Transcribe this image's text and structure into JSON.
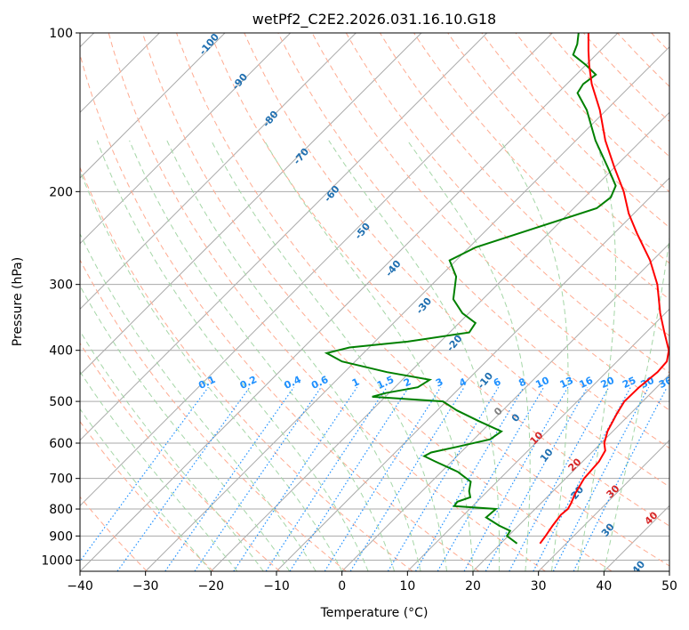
{
  "chart_data": {
    "type": "line",
    "title": "wetPf2_C2E2.2026.031.16.10.G18",
    "xlabel": "Temperature (°C)",
    "ylabel": "Pressure (hPa)",
    "xlim": [
      -40,
      50
    ],
    "ylim": [
      1050,
      100
    ],
    "y_scale": "log",
    "grid": true,
    "x_ticks": [
      "−40",
      "−30",
      "−20",
      "−10",
      "0",
      "10",
      "20",
      "30",
      "40",
      "50"
    ],
    "y_ticks": [
      {
        "p": 100,
        "label": "100"
      },
      {
        "p": 200,
        "label": "200"
      },
      {
        "p": 300,
        "label": "300"
      },
      {
        "p": 400,
        "label": "400"
      },
      {
        "p": 500,
        "label": "500"
      },
      {
        "p": 600,
        "label": "600"
      },
      {
        "p": 700,
        "label": "700"
      },
      {
        "p": 800,
        "label": "800"
      },
      {
        "p": 900,
        "label": "900"
      },
      {
        "p": 1000,
        "label": "1000"
      }
    ],
    "colors": {
      "temperature": "#ff0000",
      "dewpoint": "#008000",
      "dry_adiabat": "#ffab91",
      "moist_adiabat": "#a5d6a7",
      "mixing_ratio": "#1e90ff",
      "isotherm": "#aaaaaa",
      "isobar": "#aaaaaa"
    },
    "series": [
      {
        "points": [
          {
            "p": 930,
            "t": 26.0
          },
          {
            "p": 900,
            "t": 25.7
          },
          {
            "p": 860,
            "t": 25.2
          },
          {
            "p": 820,
            "t": 24.8
          },
          {
            "p": 800,
            "t": 25.0
          },
          {
            "p": 780,
            "t": 24.6
          },
          {
            "p": 750,
            "t": 23.8
          },
          {
            "p": 700,
            "t": 22.8
          },
          {
            "p": 650,
            "t": 22.5
          },
          {
            "p": 620,
            "t": 21.8
          },
          {
            "p": 600,
            "t": 20.5
          },
          {
            "p": 570,
            "t": 19.2
          },
          {
            "p": 530,
            "t": 18.0
          },
          {
            "p": 500,
            "t": 17.2
          },
          {
            "p": 470,
            "t": 17.3
          },
          {
            "p": 440,
            "t": 17.8
          },
          {
            "p": 420,
            "t": 17.6
          },
          {
            "p": 400,
            "t": 16.2
          },
          {
            "p": 370,
            "t": 12.8
          },
          {
            "p": 340,
            "t": 9.2
          },
          {
            "p": 300,
            "t": 4.4
          },
          {
            "p": 270,
            "t": -0.4
          },
          {
            "p": 240,
            "t": -6.5
          },
          {
            "p": 220,
            "t": -10.8
          },
          {
            "p": 200,
            "t": -14.9
          },
          {
            "p": 180,
            "t": -20.0
          },
          {
            "p": 160,
            "t": -25.5
          },
          {
            "p": 140,
            "t": -31.0
          },
          {
            "p": 125,
            "t": -36.2
          },
          {
            "p": 115,
            "t": -39.5
          },
          {
            "p": 108,
            "t": -41.8
          },
          {
            "p": 100,
            "t": -44.5
          }
        ]
      },
      {
        "points": [
          {
            "p": 930,
            "t": 22.5
          },
          {
            "p": 900,
            "t": 19.8
          },
          {
            "p": 880,
            "t": 19.5
          },
          {
            "p": 860,
            "t": 17.0
          },
          {
            "p": 830,
            "t": 13.8
          },
          {
            "p": 800,
            "t": 14.0
          },
          {
            "p": 790,
            "t": 7.2
          },
          {
            "p": 775,
            "t": 7.0
          },
          {
            "p": 760,
            "t": 8.3
          },
          {
            "p": 740,
            "t": 7.2
          },
          {
            "p": 710,
            "t": 6.0
          },
          {
            "p": 680,
            "t": 2.5
          },
          {
            "p": 650,
            "t": -2.5
          },
          {
            "p": 635,
            "t": -5.0
          },
          {
            "p": 625,
            "t": -4.5
          },
          {
            "p": 610,
            "t": -1.5
          },
          {
            "p": 590,
            "t": 2.5
          },
          {
            "p": 570,
            "t": 3.0
          },
          {
            "p": 545,
            "t": -2.0
          },
          {
            "p": 520,
            "t": -7.0
          },
          {
            "p": 500,
            "t": -10.5
          },
          {
            "p": 490,
            "t": -22.0
          },
          {
            "p": 482,
            "t": -20.5
          },
          {
            "p": 470,
            "t": -16.5
          },
          {
            "p": 455,
            "t": -15.8
          },
          {
            "p": 440,
            "t": -23.5
          },
          {
            "p": 420,
            "t": -32.0
          },
          {
            "p": 405,
            "t": -35.6
          },
          {
            "p": 395,
            "t": -33.0
          },
          {
            "p": 385,
            "t": -25.0
          },
          {
            "p": 370,
            "t": -17.0
          },
          {
            "p": 355,
            "t": -17.5
          },
          {
            "p": 340,
            "t": -21.0
          },
          {
            "p": 320,
            "t": -24.5
          },
          {
            "p": 290,
            "t": -27.5
          },
          {
            "p": 270,
            "t": -31.0
          },
          {
            "p": 255,
            "t": -29.0
          },
          {
            "p": 235,
            "t": -23.0
          },
          {
            "p": 215,
            "t": -16.5
          },
          {
            "p": 205,
            "t": -16.0
          },
          {
            "p": 195,
            "t": -17.0
          },
          {
            "p": 180,
            "t": -21.0
          },
          {
            "p": 160,
            "t": -27.0
          },
          {
            "p": 140,
            "t": -33.0
          },
          {
            "p": 130,
            "t": -37.0
          },
          {
            "p": 125,
            "t": -37.5
          },
          {
            "p": 120,
            "t": -37.0
          },
          {
            "p": 115,
            "t": -40.0
          },
          {
            "p": 110,
            "t": -43.5
          },
          {
            "p": 105,
            "t": -44.5
          },
          {
            "p": 100,
            "t": -46.0
          }
        ]
      }
    ],
    "dry_adiabat_labels": [
      "-100",
      "-90",
      "-80",
      "-70",
      "-60",
      "-50",
      "-40",
      "-30",
      "-20",
      "-10",
      "0",
      "10",
      "20",
      "30",
      "40"
    ],
    "moist_adiabat_labels": [
      "0",
      "10",
      "20",
      "30",
      "40"
    ],
    "mixing_ratio_labels": [
      "0.1",
      "0.2",
      "0.4",
      "0.6",
      "1",
      "1.5",
      "2",
      "3",
      "4",
      "6",
      "8",
      "10",
      "13",
      "16",
      "20",
      "25",
      "30",
      "36"
    ]
  }
}
